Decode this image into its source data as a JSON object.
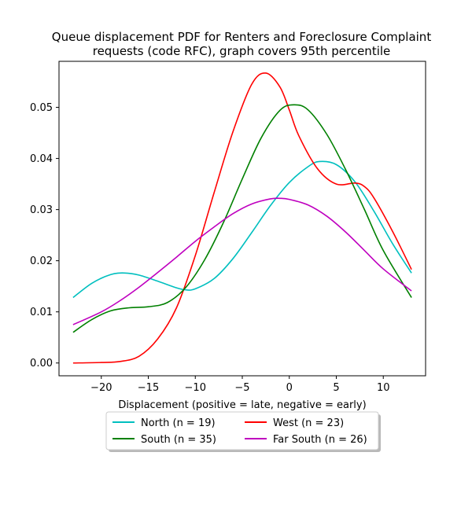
{
  "chart_data": {
    "type": "line",
    "title_lines": [
      "Queue displacement PDF for Renters and Foreclosure Complaint",
      "requests (code RFC), graph covers 95th percentile"
    ],
    "xlabel": "Displacement (positive = late, negative = early)",
    "ylabel": "",
    "xlim": [
      -24.5,
      14.5
    ],
    "ylim": [
      -0.0025,
      0.059
    ],
    "x_ticks": [
      -20,
      -15,
      -10,
      -5,
      0,
      5,
      10
    ],
    "x_tick_labels": [
      "−20",
      "−15",
      "−10",
      "−5",
      "0",
      "5",
      "10"
    ],
    "y_ticks": [
      0.0,
      0.01,
      0.02,
      0.03,
      0.04,
      0.05
    ],
    "y_tick_labels": [
      "0.00",
      "0.01",
      "0.02",
      "0.03",
      "0.04",
      "0.05"
    ],
    "grid": false,
    "legend_position": "below-plot",
    "series": [
      {
        "name": "North (n = 19)",
        "color": "#00bfbf",
        "x": [
          -23,
          -21,
          -19,
          -17.5,
          -16,
          -14,
          -12,
          -11,
          -10,
          -8,
          -6,
          -4,
          -2,
          0,
          2,
          3.2,
          5,
          7,
          9,
          11,
          13
        ],
        "y": [
          0.0128,
          0.0156,
          0.0173,
          0.0176,
          0.0172,
          0.016,
          0.0147,
          0.0143,
          0.0145,
          0.0165,
          0.0204,
          0.0255,
          0.0308,
          0.0353,
          0.0384,
          0.0394,
          0.0388,
          0.0354,
          0.0297,
          0.0233,
          0.0176
        ]
      },
      {
        "name": "West (n = 23)",
        "color": "#ff0000",
        "x": [
          -23,
          -20,
          -18,
          -16,
          -14,
          -12,
          -10,
          -8,
          -6,
          -4,
          -2.5,
          -1,
          0,
          1,
          3,
          5,
          7,
          8,
          9,
          11,
          13
        ],
        "y": [
          0.0,
          0.0001,
          0.0003,
          0.0013,
          0.0047,
          0.0108,
          0.021,
          0.0333,
          0.0452,
          0.0545,
          0.0567,
          0.054,
          0.0495,
          0.0445,
          0.038,
          0.035,
          0.0352,
          0.0345,
          0.0323,
          0.0257,
          0.0183
        ]
      },
      {
        "name": "South (n = 35)",
        "color": "#008000",
        "x": [
          -23,
          -21,
          -19,
          -17,
          -15,
          -13,
          -11,
          -9,
          -7,
          -5,
          -3,
          -1,
          0.5,
          2,
          4,
          6,
          8,
          10,
          13
        ],
        "y": [
          0.006,
          0.0085,
          0.0102,
          0.0108,
          0.011,
          0.0118,
          0.0148,
          0.0202,
          0.0275,
          0.036,
          0.044,
          0.0494,
          0.0505,
          0.0495,
          0.0447,
          0.0378,
          0.03,
          0.022,
          0.0128
        ]
      },
      {
        "name": "Far South (n = 26)",
        "color": "#bf00bf",
        "x": [
          -23,
          -20,
          -18,
          -16,
          -14,
          -12,
          -10,
          -8,
          -6,
          -4,
          -2,
          -1,
          0,
          2,
          4,
          6,
          8,
          10,
          13
        ],
        "y": [
          0.0075,
          0.01,
          0.0122,
          0.0148,
          0.0177,
          0.0207,
          0.0238,
          0.0266,
          0.0292,
          0.0311,
          0.0321,
          0.0322,
          0.032,
          0.0309,
          0.0287,
          0.0256,
          0.022,
          0.0184,
          0.0141
        ]
      }
    ]
  }
}
